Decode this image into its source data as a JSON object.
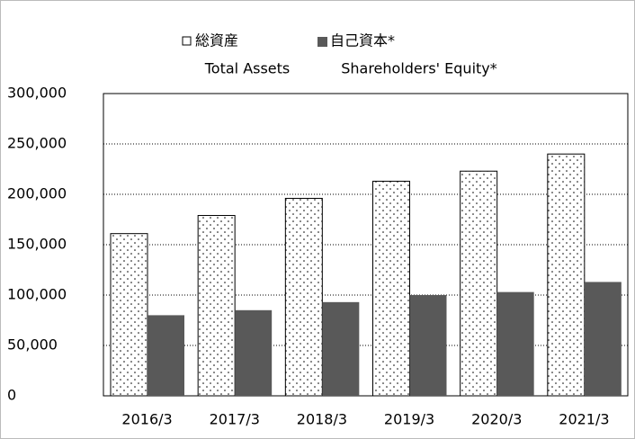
{
  "chart_data": {
    "type": "bar",
    "categories": [
      "2016/3",
      "2017/3",
      "2018/3",
      "2019/3",
      "2020/3",
      "2021/3"
    ],
    "series": [
      {
        "name": "総資産",
        "name_en": "Total Assets",
        "color": "#ffffff",
        "pattern": "dots",
        "values": [
          161000,
          179000,
          196000,
          213000,
          223000,
          240000
        ]
      },
      {
        "name": "自己資本*",
        "name_en": "Shareholders' Equity*",
        "color": "#595959",
        "values": [
          80000,
          85000,
          93000,
          100000,
          103000,
          113000
        ]
      }
    ],
    "ylim": [
      0,
      300000
    ],
    "yticks": [
      0,
      {
        "value": 50000,
        "label": "50,000"
      },
      {
        "value": 100000,
        "label": "100,000"
      },
      {
        "value": 150000,
        "label": "150,000"
      },
      {
        "value": 200000,
        "label": "200,000"
      },
      {
        "value": 250000,
        "label": "250,000"
      },
      {
        "value": 300000,
        "label": "300,000"
      }
    ],
    "grid": true
  }
}
